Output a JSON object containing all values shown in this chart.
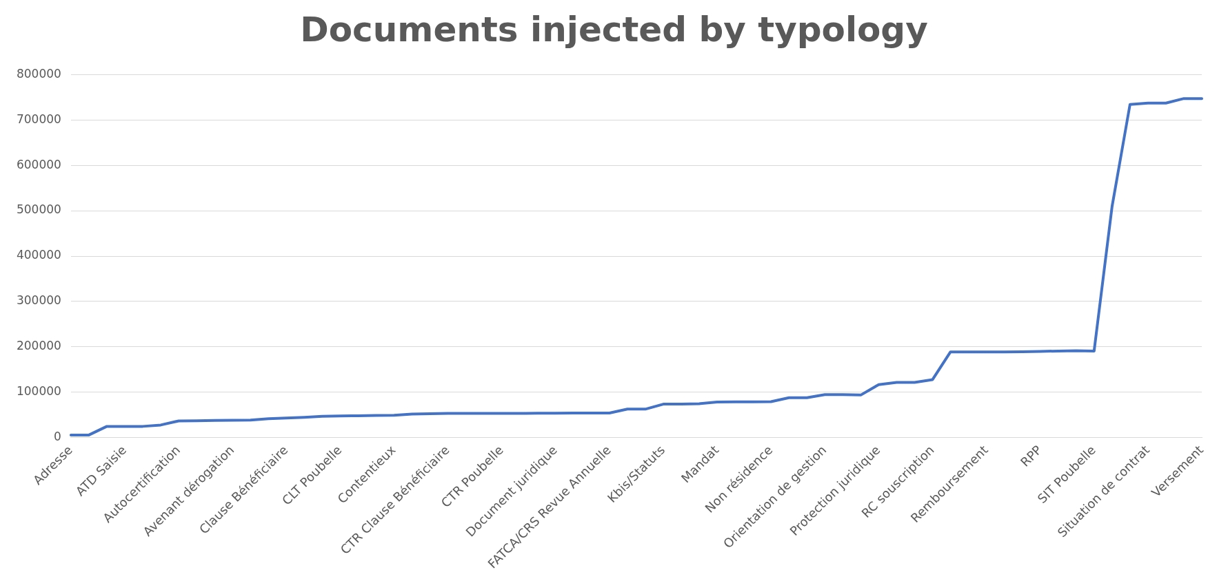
{
  "chart_data": {
    "type": "line",
    "title": "Documents injected by typology",
    "categories": [
      "Adresse",
      null,
      null,
      "ATD Saisie",
      null,
      null,
      "Autocertification",
      null,
      null,
      "Avenant dérogation",
      null,
      null,
      "Clause Bénéficiaire",
      null,
      null,
      "CLT Poubelle",
      null,
      null,
      "Contentieux",
      null,
      null,
      "CTR Clause Bénéficiaire",
      null,
      null,
      "CTR Poubelle",
      null,
      null,
      "Document juridique",
      null,
      null,
      "FATCA/CRS Revue Annuelle",
      null,
      null,
      "Kbis/Statuts",
      null,
      null,
      "Mandat",
      null,
      null,
      "Non résidence",
      null,
      null,
      "Orientation de gestion",
      null,
      null,
      "Protection juridique",
      null,
      null,
      "RC souscription",
      null,
      null,
      "Remboursement",
      null,
      null,
      "RPP",
      null,
      null,
      "SIT Poubelle",
      null,
      null,
      "Situation de contrat",
      null,
      null,
      "Versement"
    ],
    "series": [
      {
        "color": "#4472c4",
        "values": [
          6000,
          6000,
          25000,
          25000,
          25000,
          28000,
          37000,
          37500,
          38000,
          38500,
          39000,
          42000,
          43500,
          45000,
          47000,
          48000,
          48500,
          49000,
          49500,
          52000,
          53000,
          53500,
          53500,
          53500,
          53500,
          53500,
          54000,
          54000,
          54500,
          54500,
          54500,
          63000,
          63000,
          74000,
          74000,
          75000,
          78500,
          79000,
          79000,
          79500,
          88000,
          88000,
          95000,
          95000,
          94000,
          117000,
          122000,
          122000,
          128000,
          189000,
          189000,
          189000,
          189000,
          189500,
          190000,
          191000,
          191500,
          191000,
          509000,
          734000,
          737000,
          737000,
          747000,
          747000
        ]
      }
    ],
    "ylim": [
      0,
      800000
    ],
    "yticks": [
      0,
      100000,
      200000,
      300000,
      400000,
      500000,
      600000,
      700000,
      800000
    ],
    "grid": "y",
    "legend": false,
    "marker": "none",
    "line_style": "solid"
  }
}
